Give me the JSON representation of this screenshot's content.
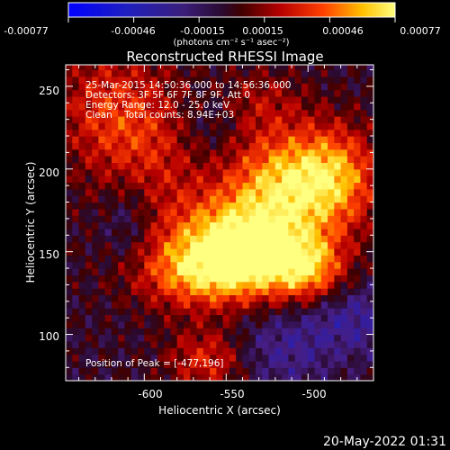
{
  "colorbar": {
    "tick_labels": [
      "-0.00077",
      "-0.00046",
      "-0.00015",
      "0.00015",
      "0.00046",
      "0.00077"
    ],
    "unit_label": "(photons cm⁻² s⁻¹ asec⁻²)",
    "vmin": -0.00077,
    "vmax": 0.00077
  },
  "footer": {
    "timestamp": "20-May-2022 01:31"
  },
  "chart_data": {
    "type": "heatmap",
    "title": "Reconstructed RHESSI Image",
    "xlabel": "Heliocentric X (arcsec)",
    "ylabel": "Heliocentric Y (arcsec)",
    "xlim": [
      -648,
      -460
    ],
    "ylim": [
      72,
      263
    ],
    "xticks": [
      -600,
      -550,
      -500
    ],
    "yticks": [
      100,
      150,
      200,
      250
    ],
    "annotations": [
      "25-Mar-2015 14:50:36.000 to 14:56:36.000",
      "Detectors: 3F 5F 6F 7F 8F 9F, Att 0",
      "Energy Range: 12.0 - 25.0 keV",
      "Clean    Total counts: 8.94E+03"
    ],
    "peak_label": "Position of Peak = [-477,196]",
    "peak": [
      -477,
      196
    ],
    "grid_step": 4,
    "sources": [
      {
        "x": -540,
        "y": 158,
        "amp": 1.15,
        "sx": 30,
        "sy": 20
      },
      {
        "x": -545,
        "y": 140,
        "amp": 0.55,
        "sx": 35,
        "sy": 15
      },
      {
        "x": -520,
        "y": 195,
        "amp": 0.75,
        "sx": 22,
        "sy": 20
      },
      {
        "x": -485,
        "y": 195,
        "amp": 0.95,
        "sx": 20,
        "sy": 22
      },
      {
        "x": -500,
        "y": 140,
        "amp": 0.7,
        "sx": 15,
        "sy": 14
      },
      {
        "x": -600,
        "y": 215,
        "amp": 0.55,
        "sx": 25,
        "sy": 35
      },
      {
        "x": -630,
        "y": 240,
        "amp": 0.35,
        "sx": 20,
        "sy": 25
      },
      {
        "x": -570,
        "y": 135,
        "amp": 0.4,
        "sx": 28,
        "sy": 15
      },
      {
        "x": -560,
        "y": 85,
        "amp": 0.6,
        "sx": 18,
        "sy": 14
      },
      {
        "x": -530,
        "y": 240,
        "amp": 0.35,
        "sx": 20,
        "sy": 15
      },
      {
        "x": -610,
        "y": 170,
        "amp": -0.35,
        "sx": 12,
        "sy": 20
      },
      {
        "x": -470,
        "y": 110,
        "amp": -0.4,
        "sx": 25,
        "sy": 15
      },
      {
        "x": -520,
        "y": 90,
        "amp": -0.35,
        "sx": 25,
        "sy": 18
      },
      {
        "x": -560,
        "y": 230,
        "amp": -0.25,
        "sx": 15,
        "sy": 15
      }
    ]
  }
}
